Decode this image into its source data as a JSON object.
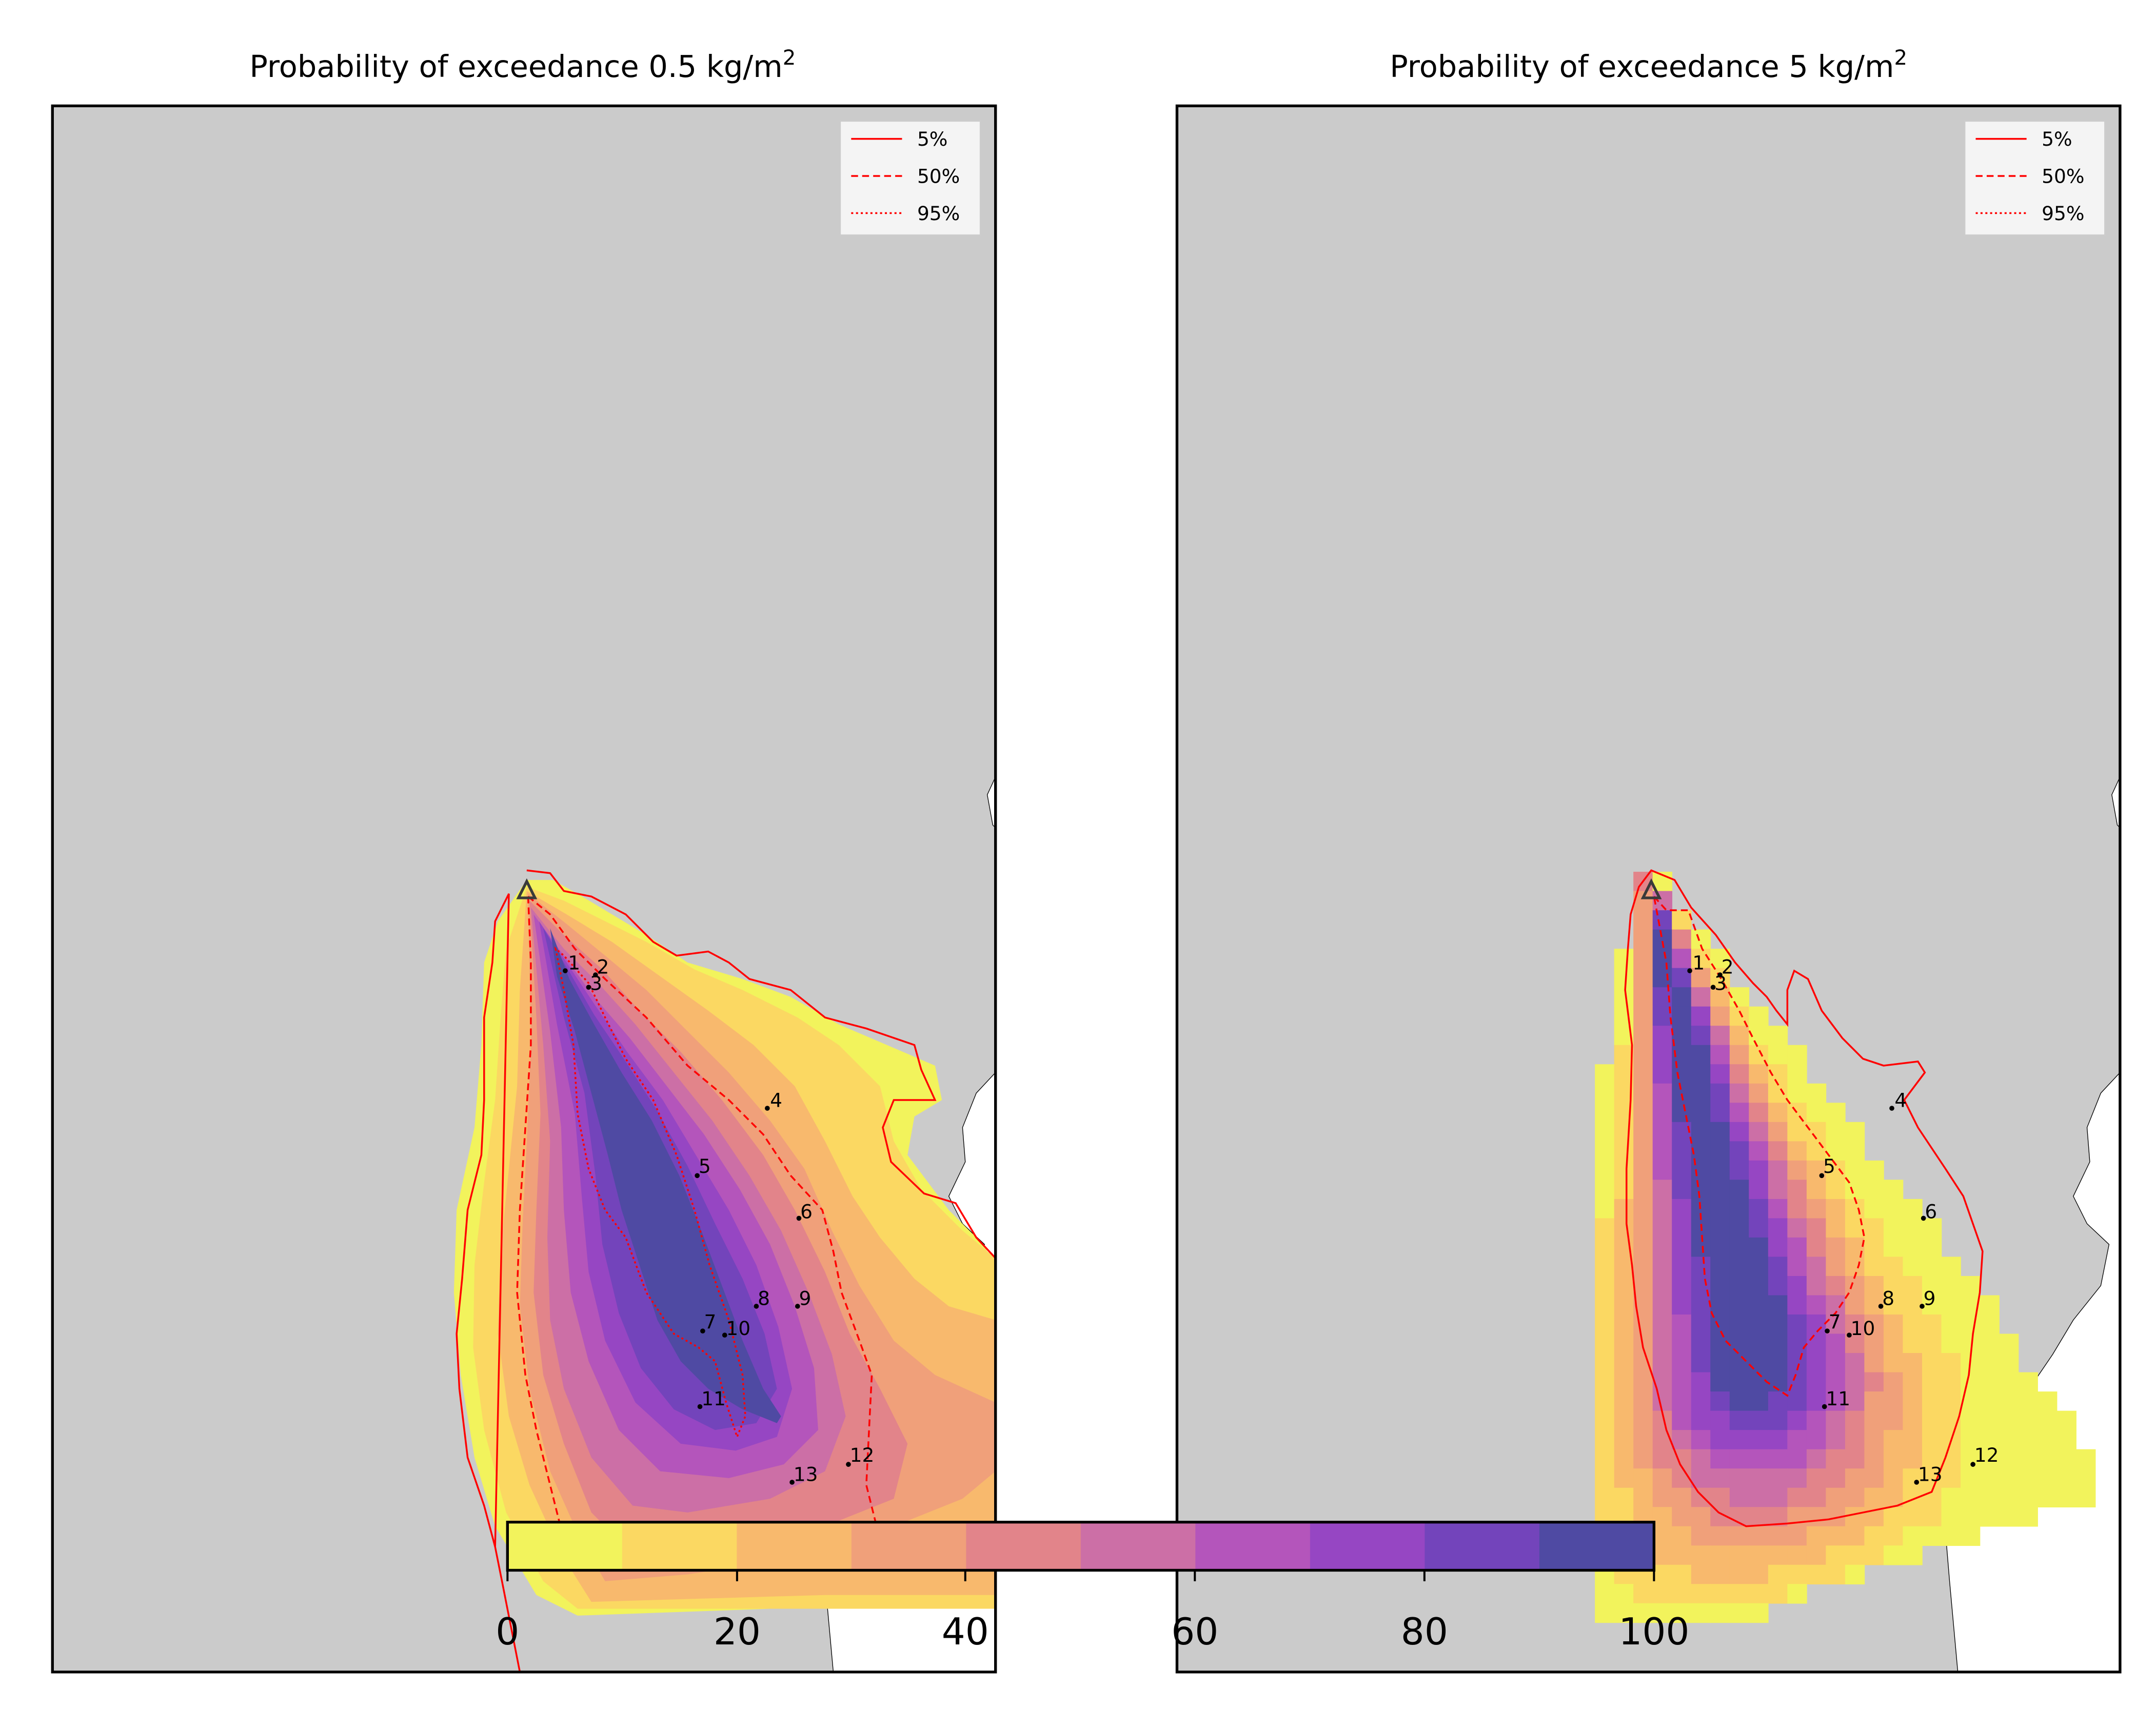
{
  "figure": {
    "panels": [
      {
        "title": "Probability of exceedance 0.5 kg/m",
        "title_sup": "2",
        "legend": [
          {
            "label": "5%",
            "style": "solid"
          },
          {
            "label": "50%",
            "style": "dashed"
          },
          {
            "label": "95%",
            "style": "dotted"
          }
        ]
      },
      {
        "title": "Probability of exceedance 5 kg/m",
        "title_sup": "2",
        "legend": [
          {
            "label": "5%",
            "style": "solid"
          },
          {
            "label": "50%",
            "style": "dashed"
          },
          {
            "label": "95%",
            "style": "dotted"
          }
        ]
      }
    ],
    "points": [
      "1",
      "2",
      "3",
      "4",
      "5",
      "6",
      "7",
      "8",
      "9",
      "10",
      "11",
      "12",
      "13"
    ],
    "colorbar": {
      "ticks": [
        "0",
        "20",
        "40",
        "60",
        "80",
        "100"
      ],
      "colors": [
        "#f2f35c",
        "#fbd862",
        "#f8b96d",
        "#f0a07a",
        "#e2848a",
        "#cc6fa6",
        "#b455bb",
        "#9646c3",
        "#7344bb",
        "#4f4aa3"
      ]
    },
    "colors": {
      "land": "#cbcbcb",
      "sea": "#ffffff",
      "contour": "#ff0000",
      "point": "#000000",
      "volcano": "#3a3a3a"
    }
  },
  "chart_data": [
    {
      "type": "heatmap",
      "title": "Probability of exceedance 0.5 kg/m²",
      "colorbar": {
        "range": [
          0,
          100
        ],
        "ticks": [
          0,
          20,
          40,
          60,
          80,
          100
        ],
        "step": 10
      },
      "contour_levels": [
        {
          "label": "5%",
          "linestyle": "solid"
        },
        {
          "label": "50%",
          "linestyle": "dashed"
        },
        {
          "label": "95%",
          "linestyle": "dotted"
        }
      ],
      "legend_position": "top-right",
      "markers": [
        "volcano (triangle)",
        "1",
        "2",
        "3",
        "4",
        "5",
        "6",
        "7",
        "8",
        "9",
        "10",
        "11",
        "12",
        "13"
      ]
    },
    {
      "type": "heatmap",
      "title": "Probability of exceedance 5 kg/m²",
      "colorbar": {
        "range": [
          0,
          100
        ],
        "ticks": [
          0,
          20,
          40,
          60,
          80,
          100
        ],
        "step": 10
      },
      "contour_levels": [
        {
          "label": "5%",
          "linestyle": "solid"
        },
        {
          "label": "50%",
          "linestyle": "dashed"
        },
        {
          "label": "95%",
          "linestyle": "dotted"
        }
      ],
      "legend_position": "top-right",
      "markers": [
        "volcano (triangle)",
        "1",
        "2",
        "3",
        "4",
        "5",
        "6",
        "7",
        "8",
        "9",
        "10",
        "11",
        "12",
        "13"
      ]
    }
  ]
}
